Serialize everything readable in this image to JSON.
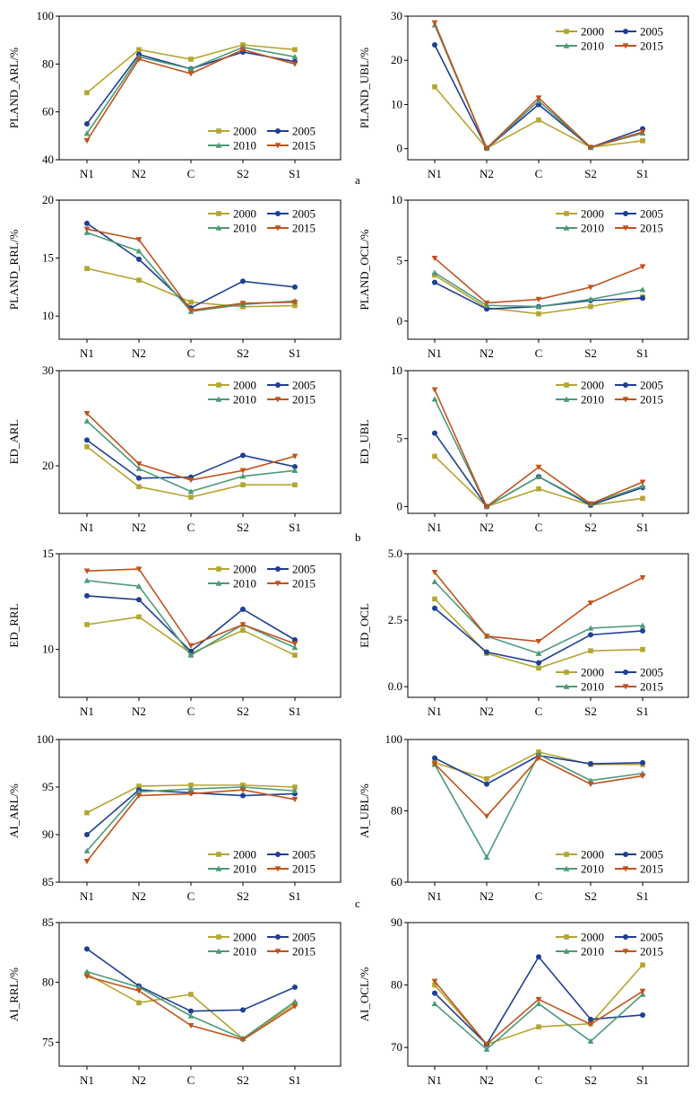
{
  "figure": {
    "x_categories": [
      "N1",
      "N2",
      "C",
      "S2",
      "S1"
    ],
    "series_names": [
      "2000",
      "2005",
      "2010",
      "2015"
    ],
    "series_colors": [
      "#b5a531",
      "#1f3f95",
      "#4d9a77",
      "#c0531c"
    ],
    "series_markers": [
      "square",
      "circle",
      "triangle-up",
      "triangle-down"
    ],
    "panel_letters": [
      "a",
      "b",
      "c"
    ]
  },
  "chart_data": [
    {
      "type": "line",
      "ylabel": "PLAND_ARL/%",
      "ylim": [
        40,
        100
      ],
      "yticks": [
        "40",
        "60",
        "80",
        "100"
      ],
      "legend": "bottom-right",
      "categories": [
        "N1",
        "N2",
        "C",
        "S2",
        "S1"
      ],
      "series": [
        {
          "name": "2000",
          "values": [
            68,
            86,
            82,
            88,
            86
          ]
        },
        {
          "name": "2005",
          "values": [
            55,
            84,
            78,
            85,
            81
          ]
        },
        {
          "name": "2010",
          "values": [
            51,
            83,
            78,
            87,
            83
          ]
        },
        {
          "name": "2015",
          "values": [
            48,
            82,
            76,
            86,
            80
          ]
        }
      ]
    },
    {
      "type": "line",
      "ylabel": "PLAND_UBL/%",
      "ylim": [
        -2.5,
        30
      ],
      "yticks": [
        "0",
        "10",
        "20",
        "30"
      ],
      "legend": "top-right",
      "categories": [
        "N1",
        "N2",
        "C",
        "S2",
        "S1"
      ],
      "series": [
        {
          "name": "2000",
          "values": [
            14,
            0.1,
            6.5,
            0.3,
            1.8
          ]
        },
        {
          "name": "2005",
          "values": [
            23.5,
            0.1,
            10,
            0.3,
            4.5
          ]
        },
        {
          "name": "2010",
          "values": [
            28,
            0.1,
            10.8,
            0.3,
            3.5
          ]
        },
        {
          "name": "2015",
          "values": [
            28.5,
            0.1,
            11.5,
            0.3,
            3.8
          ]
        }
      ]
    },
    {
      "type": "line",
      "ylabel": "PLAND_RRL/%",
      "ylim": [
        8,
        20
      ],
      "yticks": [
        "10",
        "15",
        "20"
      ],
      "legend": "top-right",
      "categories": [
        "N1",
        "N2",
        "C",
        "S2",
        "S1"
      ],
      "series": [
        {
          "name": "2000",
          "values": [
            14.1,
            13.1,
            11.2,
            10.8,
            10.9
          ]
        },
        {
          "name": "2005",
          "values": [
            18,
            14.9,
            10.7,
            13,
            12.5
          ]
        },
        {
          "name": "2010",
          "values": [
            17.2,
            15.6,
            10.4,
            11,
            11.3
          ]
        },
        {
          "name": "2015",
          "values": [
            17.5,
            16.6,
            10.5,
            11.1,
            11.2
          ]
        }
      ]
    },
    {
      "type": "line",
      "ylabel": "PLAND_OCL/%",
      "ylim": [
        -1.5,
        10
      ],
      "yticks": [
        "0",
        "5",
        "10"
      ],
      "legend": "top-right",
      "categories": [
        "N1",
        "N2",
        "C",
        "S2",
        "S1"
      ],
      "series": [
        {
          "name": "2000",
          "values": [
            3.8,
            1.1,
            0.6,
            1.2,
            2
          ]
        },
        {
          "name": "2005",
          "values": [
            3.2,
            1,
            1.2,
            1.7,
            1.9
          ]
        },
        {
          "name": "2010",
          "values": [
            4,
            1.3,
            1.2,
            1.8,
            2.6
          ]
        },
        {
          "name": "2015",
          "values": [
            5.2,
            1.5,
            1.8,
            2.8,
            4.5
          ]
        }
      ]
    },
    {
      "type": "line",
      "ylabel": "ED_ARL",
      "ylim": [
        15,
        30
      ],
      "yticks": [
        "20",
        "30"
      ],
      "legend": "top-right",
      "categories": [
        "N1",
        "N2",
        "C",
        "S2",
        "S1"
      ],
      "series": [
        {
          "name": "2000",
          "values": [
            22,
            17.8,
            16.7,
            18,
            18
          ]
        },
        {
          "name": "2005",
          "values": [
            22.7,
            18.7,
            18.8,
            21.1,
            19.9
          ]
        },
        {
          "name": "2010",
          "values": [
            24.7,
            19.7,
            17.3,
            18.9,
            19.5
          ]
        },
        {
          "name": "2015",
          "values": [
            25.5,
            20.2,
            18.5,
            19.5,
            21
          ]
        }
      ]
    },
    {
      "type": "line",
      "ylabel": "ED_UBL",
      "ylim": [
        -0.5,
        10
      ],
      "yticks": [
        "0",
        "5",
        "10"
      ],
      "legend": "top-right",
      "categories": [
        "N1",
        "N2",
        "C",
        "S2",
        "S1"
      ],
      "series": [
        {
          "name": "2000",
          "values": [
            3.7,
            0,
            1.3,
            0.1,
            0.6
          ]
        },
        {
          "name": "2005",
          "values": [
            5.4,
            0,
            2.2,
            0.1,
            1.4
          ]
        },
        {
          "name": "2010",
          "values": [
            7.9,
            0,
            2.2,
            0.2,
            1.5
          ]
        },
        {
          "name": "2015",
          "values": [
            8.6,
            0,
            2.9,
            0.2,
            1.8
          ]
        }
      ]
    },
    {
      "type": "line",
      "ylabel": "ED_RRL",
      "ylim": [
        7.5,
        15
      ],
      "yticks": [
        "10",
        "15"
      ],
      "legend": "top-right",
      "categories": [
        "N1",
        "N2",
        "C",
        "S2",
        "S1"
      ],
      "series": [
        {
          "name": "2000",
          "values": [
            11.3,
            11.7,
            9.8,
            11,
            9.7
          ]
        },
        {
          "name": "2005",
          "values": [
            12.8,
            12.6,
            9.9,
            12.1,
            10.5
          ]
        },
        {
          "name": "2010",
          "values": [
            13.6,
            13.3,
            9.7,
            11.3,
            10.1
          ]
        },
        {
          "name": "2015",
          "values": [
            14.1,
            14.2,
            10.2,
            11.3,
            10.3
          ]
        }
      ]
    },
    {
      "type": "line",
      "ylabel": "ED_OCL",
      "ylim": [
        -0.4,
        5
      ],
      "yticks": [
        "0.0",
        "2.5",
        "5.0"
      ],
      "legend": "bottom-right",
      "categories": [
        "N1",
        "N2",
        "C",
        "S2",
        "S1"
      ],
      "series": [
        {
          "name": "2000",
          "values": [
            3.3,
            1.25,
            0.7,
            1.35,
            1.4
          ]
        },
        {
          "name": "2005",
          "values": [
            2.95,
            1.3,
            0.9,
            1.95,
            2.1
          ]
        },
        {
          "name": "2010",
          "values": [
            3.95,
            1.9,
            1.25,
            2.2,
            2.3
          ]
        },
        {
          "name": "2015",
          "values": [
            4.3,
            1.9,
            1.7,
            3.15,
            4.1
          ]
        }
      ]
    },
    {
      "type": "line",
      "ylabel": "AI_ARL/%",
      "ylim": [
        85,
        100
      ],
      "yticks": [
        "85",
        "90",
        "95",
        "100"
      ],
      "legend": "bottom-right",
      "categories": [
        "N1",
        "N2",
        "C",
        "S2",
        "S1"
      ],
      "series": [
        {
          "name": "2000",
          "values": [
            92.3,
            95.1,
            95.2,
            95.2,
            95
          ]
        },
        {
          "name": "2005",
          "values": [
            90,
            94.7,
            94.4,
            94.1,
            94.3
          ]
        },
        {
          "name": "2010",
          "values": [
            88.3,
            94.5,
            94.8,
            95,
            94.6
          ]
        },
        {
          "name": "2015",
          "values": [
            87.2,
            94.1,
            94.3,
            94.7,
            93.7
          ]
        }
      ]
    },
    {
      "type": "line",
      "ylabel": "AI_UBL/%",
      "ylim": [
        60,
        100
      ],
      "yticks": [
        "60",
        "80",
        "100"
      ],
      "legend": "bottom-right",
      "categories": [
        "N1",
        "N2",
        "C",
        "S2",
        "S1"
      ],
      "series": [
        {
          "name": "2000",
          "values": [
            93.5,
            89,
            96.5,
            93,
            93
          ]
        },
        {
          "name": "2005",
          "values": [
            94.8,
            87.5,
            95.5,
            93.2,
            93.5
          ]
        },
        {
          "name": "2010",
          "values": [
            93,
            67,
            95.8,
            88.5,
            90.5
          ]
        },
        {
          "name": "2015",
          "values": [
            93.2,
            78.5,
            94.8,
            87.5,
            89.8
          ]
        }
      ]
    },
    {
      "type": "line",
      "ylabel": "AI_RRL/%",
      "ylim": [
        73,
        85
      ],
      "yticks": [
        "75",
        "80",
        "85"
      ],
      "legend": "top-right",
      "categories": [
        "N1",
        "N2",
        "C",
        "S2",
        "S1"
      ],
      "series": [
        {
          "name": "2000",
          "values": [
            80.7,
            78.3,
            79,
            75.3,
            78.2
          ]
        },
        {
          "name": "2005",
          "values": [
            82.8,
            79.7,
            77.6,
            77.7,
            79.6
          ]
        },
        {
          "name": "2010",
          "values": [
            80.9,
            79.6,
            77.2,
            75.3,
            78.4
          ]
        },
        {
          "name": "2015",
          "values": [
            80.5,
            79.3,
            76.4,
            75.2,
            78
          ]
        }
      ]
    },
    {
      "type": "line",
      "ylabel": "AI_OCL/%",
      "ylim": [
        67,
        90
      ],
      "yticks": [
        "70",
        "80",
        "90"
      ],
      "legend": "top-right",
      "categories": [
        "N1",
        "N2",
        "C",
        "S2",
        "S1"
      ],
      "series": [
        {
          "name": "2000",
          "values": [
            80,
            70.5,
            73.3,
            73.8,
            83.2
          ]
        },
        {
          "name": "2005",
          "values": [
            78.7,
            70.5,
            84.5,
            74.5,
            75.2
          ]
        },
        {
          "name": "2010",
          "values": [
            77,
            69.7,
            77,
            71,
            78.5
          ]
        },
        {
          "name": "2015",
          "values": [
            80.6,
            70.5,
            77.7,
            73.7,
            79
          ]
        }
      ]
    }
  ]
}
